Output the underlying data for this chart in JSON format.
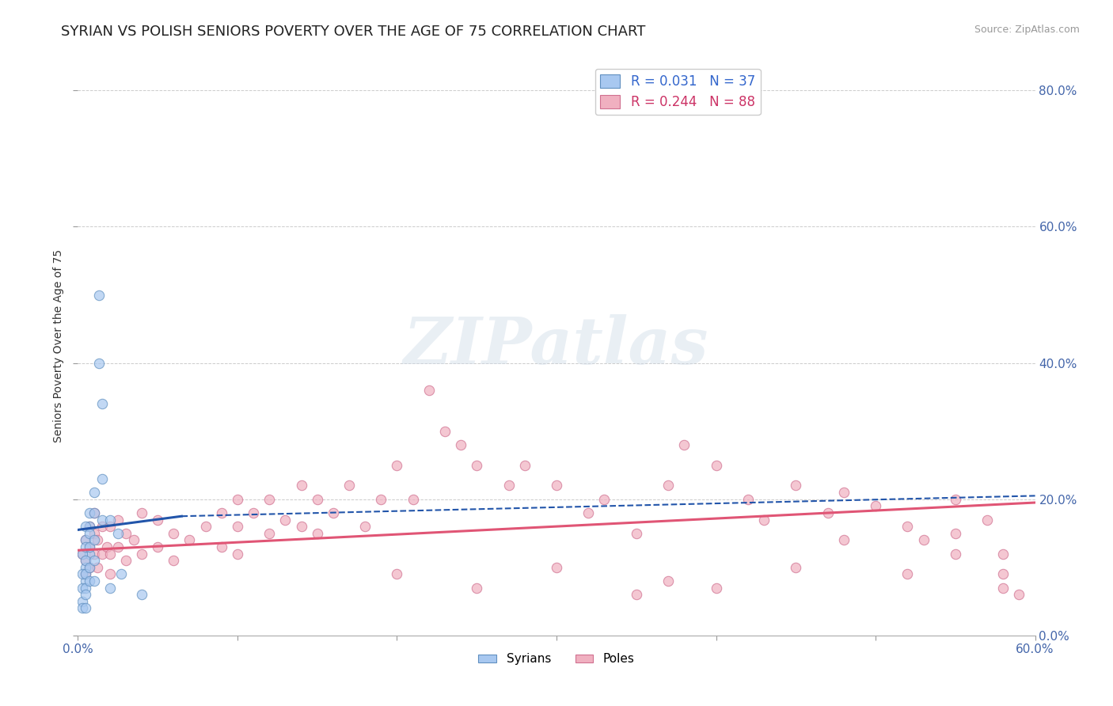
{
  "title": "SYRIAN VS POLISH SENIORS POVERTY OVER THE AGE OF 75 CORRELATION CHART",
  "source": "Source: ZipAtlas.com",
  "ylabel": "Seniors Poverty Over the Age of 75",
  "xlim": [
    0.0,
    0.6
  ],
  "ylim": [
    0.0,
    0.85
  ],
  "grid_color": "#cccccc",
  "background_color": "#ffffff",
  "watermark_text": "ZIPatlas",
  "syrian_scatter": {
    "x": [
      0.005,
      0.007,
      0.007,
      0.005,
      0.005,
      0.003,
      0.003,
      0.003,
      0.003,
      0.003,
      0.005,
      0.005,
      0.005,
      0.005,
      0.005,
      0.005,
      0.005,
      0.007,
      0.007,
      0.007,
      0.007,
      0.007,
      0.01,
      0.01,
      0.01,
      0.01,
      0.01,
      0.013,
      0.013,
      0.015,
      0.015,
      0.015,
      0.02,
      0.02,
      0.025,
      0.027,
      0.04
    ],
    "y": [
      0.14,
      0.16,
      0.12,
      0.1,
      0.08,
      0.12,
      0.09,
      0.07,
      0.05,
      0.04,
      0.16,
      0.13,
      0.11,
      0.09,
      0.07,
      0.06,
      0.04,
      0.18,
      0.15,
      0.13,
      0.1,
      0.08,
      0.21,
      0.18,
      0.14,
      0.11,
      0.08,
      0.5,
      0.4,
      0.34,
      0.23,
      0.17,
      0.17,
      0.07,
      0.15,
      0.09,
      0.06
    ],
    "color": "#a8c8f0",
    "edge_color": "#6090c0",
    "size": 80
  },
  "polish_scatter": {
    "x": [
      0.003,
      0.005,
      0.005,
      0.005,
      0.007,
      0.007,
      0.007,
      0.01,
      0.01,
      0.01,
      0.012,
      0.012,
      0.015,
      0.015,
      0.018,
      0.02,
      0.02,
      0.02,
      0.025,
      0.025,
      0.03,
      0.03,
      0.035,
      0.04,
      0.04,
      0.05,
      0.05,
      0.06,
      0.06,
      0.07,
      0.08,
      0.09,
      0.09,
      0.1,
      0.1,
      0.1,
      0.11,
      0.12,
      0.12,
      0.13,
      0.14,
      0.14,
      0.15,
      0.15,
      0.16,
      0.17,
      0.18,
      0.19,
      0.2,
      0.21,
      0.22,
      0.23,
      0.24,
      0.25,
      0.27,
      0.28,
      0.3,
      0.32,
      0.33,
      0.35,
      0.37,
      0.38,
      0.4,
      0.42,
      0.43,
      0.45,
      0.47,
      0.48,
      0.5,
      0.52,
      0.53,
      0.55,
      0.55,
      0.57,
      0.58,
      0.58,
      0.58,
      0.59,
      0.55,
      0.52,
      0.48,
      0.45,
      0.4,
      0.37,
      0.35,
      0.3,
      0.25,
      0.2
    ],
    "y": [
      0.12,
      0.14,
      0.11,
      0.09,
      0.16,
      0.13,
      0.1,
      0.18,
      0.15,
      0.12,
      0.14,
      0.1,
      0.16,
      0.12,
      0.13,
      0.16,
      0.12,
      0.09,
      0.17,
      0.13,
      0.15,
      0.11,
      0.14,
      0.18,
      0.12,
      0.17,
      0.13,
      0.15,
      0.11,
      0.14,
      0.16,
      0.18,
      0.13,
      0.2,
      0.16,
      0.12,
      0.18,
      0.2,
      0.15,
      0.17,
      0.22,
      0.16,
      0.2,
      0.15,
      0.18,
      0.22,
      0.16,
      0.2,
      0.25,
      0.2,
      0.36,
      0.3,
      0.28,
      0.25,
      0.22,
      0.25,
      0.22,
      0.18,
      0.2,
      0.15,
      0.22,
      0.28,
      0.25,
      0.2,
      0.17,
      0.22,
      0.18,
      0.21,
      0.19,
      0.16,
      0.14,
      0.2,
      0.15,
      0.17,
      0.12,
      0.09,
      0.07,
      0.06,
      0.12,
      0.09,
      0.14,
      0.1,
      0.07,
      0.08,
      0.06,
      0.1,
      0.07,
      0.09
    ],
    "color": "#f0b0c0",
    "edge_color": "#d07090",
    "size": 80
  },
  "syrian_trend_solid": {
    "x": [
      0.0,
      0.065
    ],
    "y": [
      0.155,
      0.175
    ],
    "color": "#2255aa",
    "linewidth": 2.2
  },
  "syrian_trend_dashed": {
    "x": [
      0.065,
      0.6
    ],
    "y": [
      0.175,
      0.205
    ],
    "color": "#2255aa",
    "linewidth": 1.5
  },
  "polish_trend": {
    "x": [
      0.0,
      0.6
    ],
    "y": [
      0.125,
      0.195
    ],
    "color": "#e05575",
    "linewidth": 2.2
  },
  "tick_color": "#4466aa",
  "title_fontsize": 13,
  "axis_label_fontsize": 10,
  "tick_fontsize": 11
}
